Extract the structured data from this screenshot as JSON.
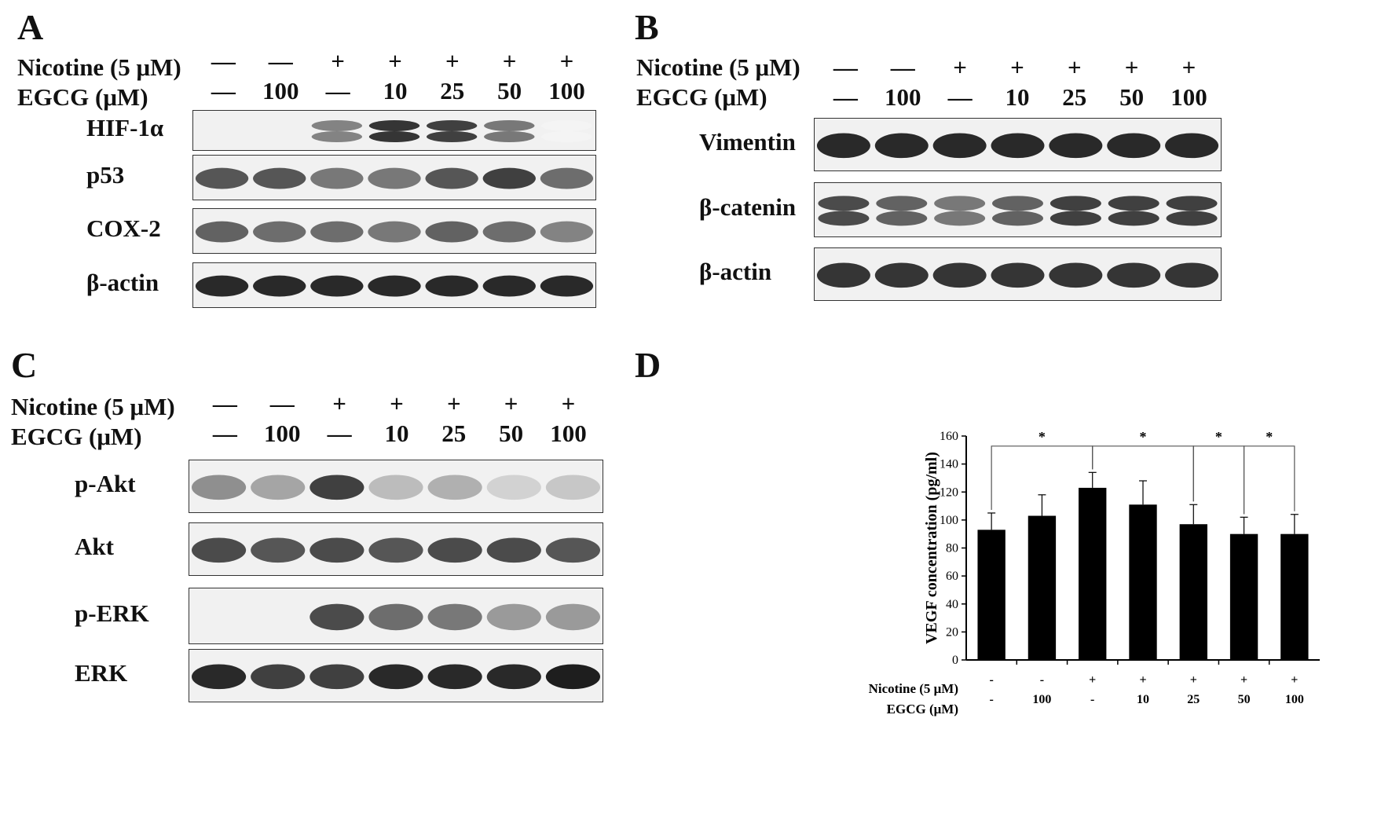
{
  "figure": {
    "panels": [
      {
        "id": "A",
        "label": "A",
        "nicotine_label": "Nicotine (5 μM)",
        "egcg_label": "EGCG (μM)",
        "nicotine": [
          "—",
          "—",
          "+",
          "+",
          "+",
          "+",
          "+"
        ],
        "egcg": [
          "—",
          "100",
          "—",
          "10",
          "25",
          "50",
          "100"
        ],
        "rows": [
          {
            "label": "HIF-1α",
            "bands": [
              0.0,
              0.0,
              0.55,
              0.9,
              0.85,
              0.6,
              0.05
            ],
            "double": true
          },
          {
            "label": "p53",
            "bands": [
              0.75,
              0.75,
              0.6,
              0.6,
              0.75,
              0.85,
              0.65
            ]
          },
          {
            "label": "COX-2",
            "bands": [
              0.7,
              0.65,
              0.65,
              0.6,
              0.7,
              0.65,
              0.55
            ]
          },
          {
            "label": "β-actin",
            "bands": [
              0.95,
              0.95,
              0.95,
              0.95,
              0.95,
              0.95,
              0.95
            ]
          }
        ]
      },
      {
        "id": "B",
        "label": "B",
        "nicotine_label": "Nicotine (5 μM)",
        "egcg_label": "EGCG (μM)",
        "nicotine": [
          "—",
          "—",
          "+",
          "+",
          "+",
          "+",
          "+"
        ],
        "egcg": [
          "—",
          "100",
          "—",
          "10",
          "25",
          "50",
          "100"
        ],
        "rows": [
          {
            "label": "Vimentin",
            "bands": [
              0.95,
              0.95,
              0.95,
              0.95,
              0.95,
              0.95,
              0.95
            ]
          },
          {
            "label": "β-catenin",
            "bands": [
              0.8,
              0.7,
              0.6,
              0.7,
              0.85,
              0.85,
              0.85
            ],
            "double": true
          },
          {
            "label": "β-actin",
            "bands": [
              0.9,
              0.9,
              0.9,
              0.9,
              0.9,
              0.9,
              0.9
            ]
          }
        ]
      },
      {
        "id": "C",
        "label": "C",
        "nicotine_label": "Nicotine (5 μM)",
        "egcg_label": "EGCG (μM)",
        "nicotine": [
          "—",
          "—",
          "+",
          "+",
          "+",
          "+",
          "+"
        ],
        "egcg": [
          "—",
          "100",
          "—",
          "10",
          "25",
          "50",
          "100"
        ],
        "rows": [
          {
            "label": "p-Akt",
            "bands": [
              0.5,
              0.4,
              0.85,
              0.3,
              0.35,
              0.2,
              0.25
            ]
          },
          {
            "label": "Akt",
            "bands": [
              0.8,
              0.75,
              0.8,
              0.75,
              0.8,
              0.8,
              0.75
            ]
          },
          {
            "label": "p-ERK",
            "bands": [
              0.0,
              0.0,
              0.8,
              0.65,
              0.6,
              0.45,
              0.45
            ]
          },
          {
            "label": "ERK",
            "bands": [
              0.95,
              0.85,
              0.85,
              0.95,
              0.95,
              0.95,
              1.0
            ]
          }
        ]
      }
    ]
  },
  "chart_data": {
    "type": "bar",
    "panel_label": "D",
    "ylabel": "VEGF concentration (pg/ml)",
    "ylim": [
      0,
      160
    ],
    "yticks": [
      "0",
      "20",
      "40",
      "60",
      "80",
      "100",
      "120",
      "140",
      "160"
    ],
    "row1_label": "Nicotine (5 μM)",
    "row2_label": "EGCG (μM)",
    "nicotine": [
      "-",
      "-",
      "+",
      "+",
      "+",
      "+",
      "+"
    ],
    "egcg": [
      "-",
      "100",
      "-",
      "10",
      "25",
      "50",
      "100"
    ],
    "values": [
      93,
      103,
      123,
      111,
      97,
      90,
      90
    ],
    "errors": [
      12,
      15,
      11,
      17,
      14,
      12,
      14
    ],
    "significance": [
      {
        "from": 0,
        "to": 2,
        "label": "*"
      },
      {
        "from": 2,
        "to": 4,
        "label": "*"
      },
      {
        "from": 4,
        "to": 5,
        "label": "*"
      },
      {
        "from": 5,
        "to": 6,
        "label": "*"
      }
    ],
    "bar_color": "#000000"
  }
}
